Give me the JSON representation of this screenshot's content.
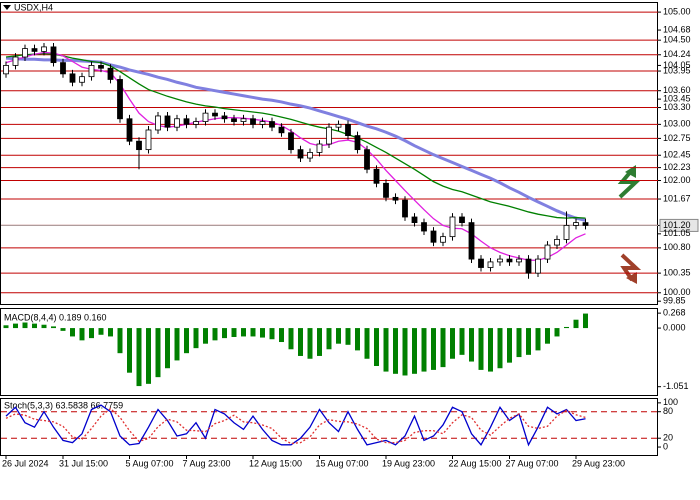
{
  "chart_data": [
    {
      "type": "candlestick",
      "title": "USDX,H4",
      "categories": [
        "26 Jul 2024",
        null,
        null,
        null,
        null,
        null,
        "31 Jul 15:00",
        null,
        null,
        null,
        null,
        null,
        null,
        "5 Aug 07:00",
        null,
        null,
        null,
        null,
        null,
        "7 Aug 23:00",
        null,
        null,
        null,
        null,
        null,
        null,
        "12 Aug 15:00",
        null,
        null,
        null,
        null,
        null,
        null,
        "15 Aug 07:00",
        null,
        null,
        null,
        null,
        null,
        null,
        "19 Aug 23:00",
        null,
        null,
        null,
        null,
        null,
        null,
        "22 Aug 15:00",
        null,
        null,
        null,
        null,
        null,
        "27 Aug 07:00",
        null,
        null,
        null,
        null,
        null,
        null,
        "29 Aug 23:00",
        null
      ],
      "open": [
        103.9,
        104.05,
        104.2,
        104.35,
        104.3,
        104.38,
        104.1,
        103.9,
        103.75,
        103.85,
        104.05,
        104.0,
        103.8,
        103.1,
        102.7,
        102.55,
        102.9,
        103.15,
        102.95,
        103.1,
        103.0,
        103.05,
        103.2,
        103.15,
        103.1,
        103.05,
        103.1,
        103.0,
        103.05,
        102.95,
        102.85,
        102.55,
        102.4,
        102.5,
        102.65,
        102.95,
        103.0,
        102.8,
        102.55,
        102.2,
        101.95,
        101.7,
        101.65,
        101.35,
        101.25,
        101.1,
        100.9,
        101.0,
        101.35,
        101.25,
        100.6,
        100.45,
        100.55,
        100.6,
        100.55,
        100.6,
        100.35,
        100.6,
        100.85,
        100.95,
        101.2,
        101.25
      ],
      "high": [
        104.12,
        104.27,
        104.42,
        104.42,
        104.45,
        104.45,
        104.17,
        103.97,
        103.92,
        104.12,
        104.12,
        104.07,
        103.87,
        103.17,
        102.77,
        102.97,
        103.22,
        103.22,
        103.17,
        103.17,
        103.12,
        103.27,
        103.27,
        103.22,
        103.17,
        103.17,
        103.17,
        103.12,
        103.12,
        103.02,
        102.92,
        102.62,
        102.57,
        102.72,
        103.02,
        103.07,
        103.07,
        102.87,
        102.62,
        102.27,
        102.02,
        101.77,
        101.72,
        101.42,
        101.32,
        101.17,
        101.07,
        101.42,
        101.42,
        101.32,
        100.67,
        100.62,
        100.67,
        100.67,
        100.67,
        100.67,
        100.67,
        100.92,
        101.02,
        101.45,
        101.32,
        101.32
      ],
      "low": [
        103.83,
        103.98,
        104.13,
        104.23,
        104.23,
        104.03,
        103.83,
        103.68,
        103.68,
        103.78,
        103.93,
        103.73,
        103.03,
        102.63,
        102.2,
        102.48,
        102.83,
        102.88,
        102.88,
        102.93,
        102.93,
        102.98,
        103.08,
        103.03,
        102.98,
        102.98,
        102.93,
        102.93,
        102.88,
        102.78,
        102.48,
        102.33,
        102.33,
        102.43,
        102.58,
        102.88,
        102.73,
        102.48,
        102.13,
        101.88,
        101.63,
        101.58,
        101.28,
        101.18,
        101.03,
        100.83,
        100.83,
        100.93,
        101.18,
        100.53,
        100.38,
        100.38,
        100.48,
        100.48,
        100.48,
        100.25,
        100.28,
        100.53,
        100.78,
        100.88,
        101.13,
        101.13
      ],
      "close": [
        104.05,
        104.2,
        104.35,
        104.3,
        104.38,
        104.1,
        103.9,
        103.75,
        103.85,
        104.05,
        104.0,
        103.8,
        103.1,
        102.7,
        102.55,
        102.9,
        103.15,
        102.95,
        103.1,
        103.0,
        103.05,
        103.2,
        103.15,
        103.1,
        103.05,
        103.1,
        103.0,
        103.05,
        102.95,
        102.85,
        102.55,
        102.4,
        102.5,
        102.65,
        102.95,
        103.0,
        102.8,
        102.55,
        102.2,
        101.95,
        101.7,
        101.65,
        101.35,
        101.25,
        101.1,
        100.9,
        101.0,
        101.35,
        101.25,
        100.6,
        100.45,
        100.55,
        100.6,
        100.55,
        100.6,
        100.35,
        100.6,
        100.85,
        100.95,
        101.2,
        101.25,
        101.2
      ],
      "series": [
        {
          "color": "#8080e0",
          "values": [
            104.18,
            104.17,
            104.16,
            104.16,
            104.15,
            104.15,
            104.14,
            104.14,
            104.13,
            104.12,
            104.11,
            104.06,
            104.02,
            103.97,
            103.93,
            103.89,
            103.84,
            103.8,
            103.75,
            103.71,
            103.66,
            103.63,
            103.6,
            103.57,
            103.54,
            103.51,
            103.48,
            103.45,
            103.43,
            103.4,
            103.36,
            103.33,
            103.29,
            103.24,
            103.19,
            103.14,
            103.09,
            103.03,
            102.97,
            102.92,
            102.86,
            102.79,
            102.71,
            102.62,
            102.54,
            102.46,
            102.39,
            102.32,
            102.25,
            102.18,
            102.11,
            102.04,
            101.96,
            101.87,
            101.79,
            101.7,
            101.62,
            101.54,
            101.46,
            101.39,
            101.33,
            101.29
          ]
        },
        {
          "color": "#008000",
          "values": [
            104.2,
            104.22,
            104.24,
            104.25,
            104.26,
            104.25,
            104.22,
            104.18,
            104.15,
            104.12,
            104.1,
            104.04,
            103.94,
            103.83,
            103.72,
            103.62,
            103.56,
            103.5,
            103.45,
            103.4,
            103.36,
            103.33,
            103.31,
            103.28,
            103.26,
            103.24,
            103.22,
            103.2,
            103.17,
            103.13,
            103.09,
            103.04,
            102.99,
            102.95,
            102.92,
            102.88,
            102.82,
            102.76,
            102.68,
            102.59,
            102.5,
            102.4,
            102.3,
            102.2,
            102.09,
            101.98,
            101.9,
            101.84,
            101.8,
            101.74,
            101.68,
            101.62,
            101.58,
            101.54,
            101.49,
            101.44,
            101.4,
            101.37,
            101.34,
            101.33,
            101.34,
            101.33
          ]
        },
        {
          "color": "#e020e0",
          "values": [
            104.1,
            104.15,
            104.2,
            104.25,
            104.28,
            104.27,
            104.22,
            104.12,
            104.02,
            103.98,
            103.96,
            103.92,
            103.72,
            103.45,
            103.2,
            103.05,
            102.98,
            102.95,
            102.97,
            103.0,
            103.04,
            103.07,
            103.1,
            103.12,
            103.12,
            103.11,
            103.09,
            103.07,
            103.04,
            102.98,
            102.88,
            102.76,
            102.66,
            102.62,
            102.64,
            102.7,
            102.72,
            102.68,
            102.55,
            102.38,
            102.18,
            102.0,
            101.82,
            101.65,
            101.48,
            101.32,
            101.2,
            101.15,
            101.14,
            101.05,
            100.92,
            100.8,
            100.72,
            100.66,
            100.62,
            100.58,
            100.58,
            100.63,
            100.72,
            100.85,
            100.98,
            101.05
          ]
        }
      ],
      "levels": [
        105,
        104.5,
        104.24,
        103.95,
        103.6,
        103.3,
        103,
        102.75,
        102.45,
        102.23,
        102,
        101.67,
        101.2,
        100.8,
        100.35,
        100
      ],
      "level_color": "#c00000",
      "last_price": 101.2,
      "ylim": [
        99.8,
        105.18
      ],
      "yticks": [
        {
          "value": 105,
          "label": "105.00"
        },
        104.68,
        {
          "value": 104.5,
          "label": "104.50"
        },
        104.24,
        104.05,
        103.95,
        {
          "value": 103.6,
          "label": "103.60"
        },
        103.45,
        {
          "value": 103.3,
          "label": "103.30"
        },
        {
          "value": 103,
          "label": "103.00"
        },
        102.75,
        102.45,
        102.23,
        {
          "value": 102,
          "label": "102.00"
        },
        101.67,
        {
          "value": 101.2,
          "label": "101.20"
        },
        101.05,
        {
          "value": 100.8,
          "label": "100.80"
        },
        100.35,
        {
          "value": 100,
          "label": "100.00"
        },
        99.85
      ]
    },
    {
      "type": "bar",
      "title": "MACD(8,4,4) 0.189 0.160",
      "color": "#008000",
      "values": [
        0.05,
        0.08,
        0.1,
        0.08,
        0.06,
        0.03,
        -0.05,
        -0.15,
        -0.22,
        -0.18,
        -0.12,
        -0.15,
        -0.45,
        -0.8,
        -1.04,
        -1.0,
        -0.88,
        -0.72,
        -0.58,
        -0.45,
        -0.36,
        -0.28,
        -0.22,
        -0.18,
        -0.16,
        -0.15,
        -0.15,
        -0.17,
        -0.2,
        -0.25,
        -0.38,
        -0.5,
        -0.55,
        -0.5,
        -0.38,
        -0.28,
        -0.3,
        -0.4,
        -0.55,
        -0.68,
        -0.78,
        -0.82,
        -0.85,
        -0.82,
        -0.78,
        -0.75,
        -0.7,
        -0.55,
        -0.48,
        -0.6,
        -0.75,
        -0.78,
        -0.72,
        -0.62,
        -0.52,
        -0.48,
        -0.4,
        -0.28,
        -0.15,
        0.02,
        0.15,
        0.26
      ],
      "ylim": [
        -1.2,
        0.36
      ],
      "yticks": [
        0.268,
        {
          "value": 0,
          "label": "0.000"
        },
        -1.051
      ]
    },
    {
      "type": "line",
      "title": "Stoch(5,3,3) 63.5838 66.7759",
      "series": [
        {
          "color": "#0000cc",
          "values": [
            70,
            90,
            55,
            45,
            80,
            45,
            15,
            10,
            30,
            85,
            95,
            80,
            25,
            5,
            8,
            45,
            85,
            60,
            25,
            30,
            55,
            20,
            85,
            75,
            55,
            40,
            70,
            40,
            15,
            5,
            5,
            20,
            45,
            85,
            55,
            35,
            80,
            40,
            5,
            10,
            15,
            5,
            25,
            70,
            15,
            25,
            50,
            90,
            80,
            30,
            5,
            45,
            90,
            60,
            75,
            5,
            45,
            90,
            75,
            85,
            60,
            64
          ]
        },
        {
          "color": "#e03030",
          "dashed": true,
          "values": [
            65,
            75,
            72,
            63,
            60,
            57,
            47,
            23,
            18,
            42,
            70,
            87,
            67,
            37,
            13,
            19,
            46,
            63,
            57,
            38,
            37,
            35,
            53,
            60,
            72,
            57,
            55,
            50,
            42,
            20,
            8,
            10,
            23,
            50,
            62,
            58,
            57,
            52,
            42,
            18,
            10,
            10,
            15,
            33,
            37,
            37,
            30,
            55,
            73,
            67,
            38,
            27,
            47,
            65,
            75,
            47,
            42,
            47,
            70,
            83,
            73,
            67
          ]
        }
      ],
      "levels": [
        80,
        20
      ],
      "level_color": "#c00000",
      "ylim": [
        -18,
        111
      ],
      "yticks": [
        100,
        80,
        20,
        0
      ]
    }
  ]
}
